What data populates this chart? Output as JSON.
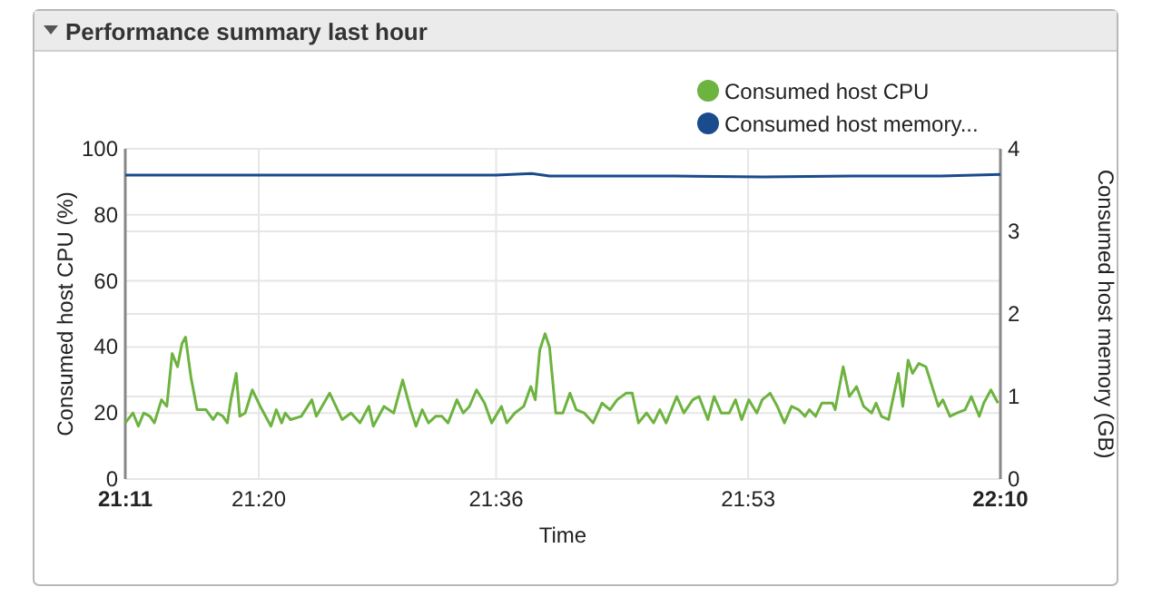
{
  "chart_data": {
    "type": "line",
    "title": "Performance summary last hour",
    "xlabel": "Time",
    "ylabel": "Consumed host CPU (%)",
    "y2label": "Consumed host memory (GB)",
    "xlim": [
      21.1833,
      22.1667
    ],
    "xticks": [
      {
        "value": 21.1833,
        "label": "21:11"
      },
      {
        "value": 21.3333,
        "label": "21:20"
      },
      {
        "value": 21.6,
        "label": "21:36"
      },
      {
        "value": 21.8833,
        "label": "21:53"
      },
      {
        "value": 22.1667,
        "label": "22:10"
      }
    ],
    "ylim": [
      0,
      100
    ],
    "yticks": [
      0,
      20,
      40,
      60,
      80,
      100
    ],
    "y2lim": [
      0,
      4
    ],
    "y2ticks": [
      0,
      1,
      2,
      3,
      4
    ],
    "grid": true,
    "legend": "top right",
    "marker": "none",
    "line_style": "solid",
    "series": [
      {
        "name": "Consumed host CPU",
        "color": "#6db33f",
        "x": [
          21.1833,
          21.192,
          21.198,
          21.204,
          21.211,
          21.216,
          21.224,
          21.23,
          21.236,
          21.242,
          21.247,
          21.251,
          21.257,
          21.264,
          21.274,
          21.282,
          21.287,
          21.293,
          21.298,
          21.302,
          21.308,
          21.312,
          21.318,
          21.326,
          21.335,
          21.347,
          21.353,
          21.359,
          21.363,
          21.369,
          21.381,
          21.393,
          21.398,
          21.413,
          21.427,
          21.437,
          21.447,
          21.457,
          21.462,
          21.474,
          21.485,
          21.495,
          21.504,
          21.51,
          21.517,
          21.524,
          21.532,
          21.539,
          21.546,
          21.556,
          21.563,
          21.57,
          21.578,
          21.587,
          21.595,
          21.606,
          21.612,
          21.621,
          21.631,
          21.639,
          21.644,
          21.649,
          21.655,
          21.66,
          21.667,
          21.675,
          21.683,
          21.69,
          21.699,
          21.709,
          21.719,
          21.728,
          21.736,
          21.746,
          21.753,
          21.76,
          21.769,
          21.777,
          21.784,
          21.791,
          21.803,
          21.811,
          21.821,
          21.828,
          21.838,
          21.845,
          21.853,
          21.862,
          21.869,
          21.876,
          21.884,
          21.893,
          21.899,
          21.908,
          21.916,
          21.924,
          21.932,
          21.94,
          21.947,
          21.952,
          21.959,
          21.966,
          21.978,
          21.981,
          21.99,
          21.997,
          22.005,
          22.013,
          22.022,
          22.027,
          22.033,
          22.041,
          22.052,
          22.057,
          22.063,
          22.068,
          22.075,
          22.083,
          22.09,
          22.097,
          22.102,
          22.11,
          22.118,
          22.127,
          22.134,
          22.143,
          22.148,
          22.156,
          22.164
        ],
        "values": [
          17,
          20,
          16,
          20,
          19,
          17,
          24,
          22,
          38,
          34,
          41,
          43,
          31,
          21,
          21,
          18,
          20,
          19,
          17,
          24,
          32,
          19,
          20,
          27,
          22,
          16,
          21,
          17,
          20,
          18,
          19,
          24,
          19,
          26,
          18,
          20,
          17,
          22,
          16,
          22,
          20,
          30,
          21,
          16,
          21,
          17,
          19,
          19,
          17,
          24,
          20,
          22,
          27,
          23,
          17,
          22,
          17,
          20,
          22,
          28,
          24,
          39,
          44,
          40,
          20,
          20,
          26,
          21,
          20,
          17,
          23,
          21,
          24,
          26,
          26,
          17,
          20,
          17,
          21,
          17,
          25,
          20,
          24,
          25,
          18,
          25,
          20,
          20,
          24,
          18,
          24,
          20,
          24,
          26,
          22,
          17,
          22,
          21,
          19,
          21,
          19,
          23,
          23,
          21,
          34,
          25,
          28,
          22,
          20,
          23,
          19,
          18,
          32,
          22,
          36,
          32,
          35,
          34,
          28,
          22,
          24,
          19,
          20,
          21,
          25,
          19,
          23,
          27,
          23
        ]
      },
      {
        "name": "Consumed host memory...",
        "color": "#1a4b8c",
        "axis": "y2",
        "x": [
          21.1833,
          21.3,
          21.4,
          21.5,
          21.6,
          21.64,
          21.66,
          21.7,
          21.8,
          21.9,
          22.0,
          22.1,
          22.1667
        ],
        "values": [
          3.68,
          3.68,
          3.68,
          3.68,
          3.68,
          3.7,
          3.67,
          3.67,
          3.67,
          3.66,
          3.67,
          3.67,
          3.69
        ]
      }
    ]
  }
}
